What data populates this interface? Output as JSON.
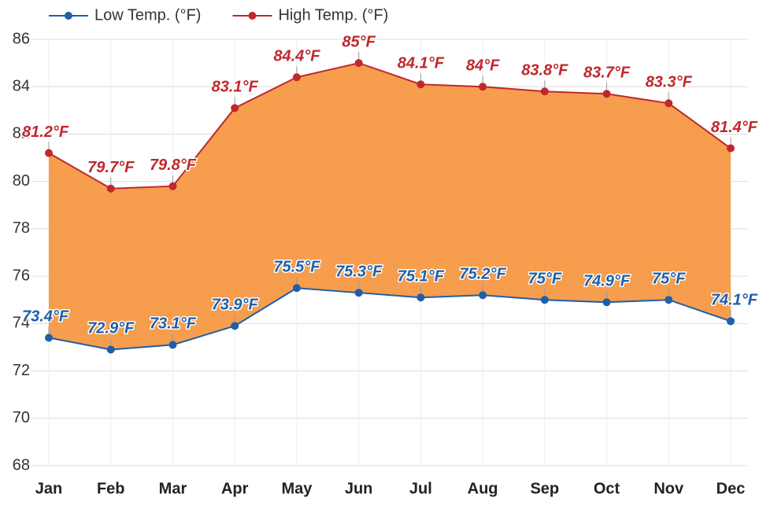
{
  "chart_data": {
    "type": "line",
    "categories": [
      "Jan",
      "Feb",
      "Mar",
      "Apr",
      "May",
      "Jun",
      "Jul",
      "Aug",
      "Sep",
      "Oct",
      "Nov",
      "Dec"
    ],
    "series": [
      {
        "name": "Low Temp. (°F)",
        "color": "#1f5fa8",
        "values": [
          73.4,
          72.9,
          73.1,
          73.9,
          75.5,
          75.3,
          75.1,
          75.2,
          75,
          74.9,
          75,
          74.1
        ],
        "value_labels": [
          "73.4°F",
          "72.9°F",
          "73.1°F",
          "73.9°F",
          "75.5°F",
          "75.3°F",
          "75.1°F",
          "75.2°F",
          "75°F",
          "74.9°F",
          "75°F",
          "74.1°F"
        ]
      },
      {
        "name": "High Temp. (°F)",
        "color": "#c0282d",
        "values": [
          81.2,
          79.7,
          79.8,
          83.1,
          84.4,
          85,
          84.1,
          84,
          83.8,
          83.7,
          83.3,
          81.4
        ],
        "value_labels": [
          "81.2°F",
          "79.7°F",
          "79.8°F",
          "83.1°F",
          "84.4°F",
          "85°F",
          "84.1°F",
          "84°F",
          "83.8°F",
          "83.7°F",
          "83.3°F",
          "81.4°F"
        ]
      }
    ],
    "area_color": "#f5953f",
    "ylim": [
      68,
      86
    ],
    "yticks": [
      68,
      70,
      72,
      74,
      76,
      78,
      80,
      82,
      84,
      86
    ],
    "grid": true,
    "legend": "top"
  }
}
